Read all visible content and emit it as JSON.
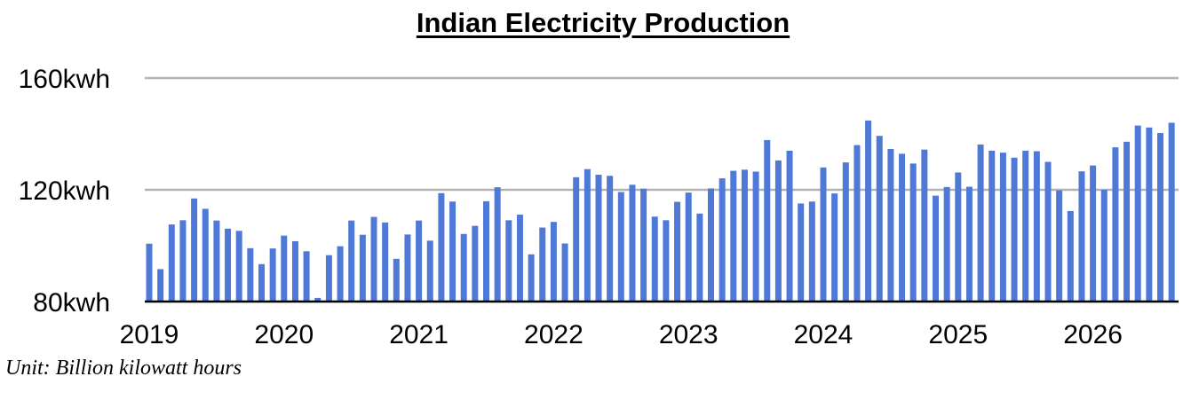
{
  "chart_data": {
    "type": "bar",
    "title": "Indian Electricity Production",
    "xlabel": "",
    "ylabel": "",
    "unit_note": "Unit: Billion kilowatt hours",
    "ylim": [
      80,
      160
    ],
    "yticks": [
      {
        "value": 80,
        "label": "80kwh"
      },
      {
        "value": 120,
        "label": "120kwh"
      },
      {
        "value": 160,
        "label": "160kwh"
      }
    ],
    "year_labels": [
      "2019",
      "2020",
      "2021",
      "2022",
      "2023",
      "2024",
      "2025",
      "2026"
    ],
    "grid": true,
    "bar_color": "#4f79d6",
    "series": [
      {
        "values": [
          100.7,
          91.6,
          107.6,
          109.1,
          116.9,
          113.2,
          109.0,
          106.1,
          105.3,
          99.1,
          93.4,
          99.0,
          103.6,
          101.6,
          98.0,
          81.3,
          96.6,
          99.8,
          109.0,
          103.9,
          110.3,
          108.3,
          95.3,
          104.0,
          109.0,
          101.8,
          118.8,
          115.8,
          104.2,
          107.1,
          115.9,
          120.9,
          109.1,
          111.1,
          96.9,
          106.5,
          108.5,
          100.8,
          124.5,
          127.4,
          125.4,
          125.0,
          119.2,
          121.8,
          120.4,
          110.4,
          109.1,
          115.7,
          119.0,
          111.5,
          120.5,
          124.1,
          126.8,
          127.2,
          126.5,
          137.8,
          130.5,
          134.0,
          115.1,
          115.8,
          128.0,
          118.7,
          129.8,
          136.0,
          144.8,
          139.3,
          134.6,
          132.9,
          129.4,
          134.4,
          117.9,
          121.0,
          126.2,
          121.1,
          136.2,
          134.0,
          133.3,
          131.5,
          134.0,
          133.8,
          130.0,
          119.8,
          112.4,
          126.6,
          128.7,
          120.0,
          135.2,
          137.2,
          143.0,
          142.3,
          140.3,
          144.0
        ]
      }
    ]
  }
}
